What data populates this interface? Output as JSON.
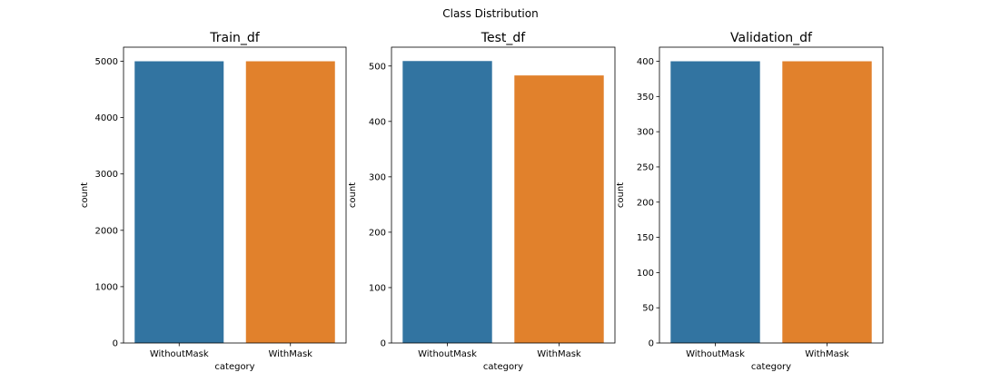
{
  "figure": {
    "title": "Class Distribution"
  },
  "colors": {
    "WithoutMask": "#3274a1",
    "WithMask": "#e1812c"
  },
  "chart_data": [
    {
      "type": "bar",
      "title": "Train_df",
      "xlabel": "category",
      "ylabel": "count",
      "categories": [
        "WithoutMask",
        "WithMask"
      ],
      "values": [
        5000,
        5000
      ],
      "ylim": [
        0,
        5250
      ],
      "yticks": [
        0,
        1000,
        2000,
        3000,
        4000,
        5000
      ],
      "ytick_labels": [
        "0",
        "1000",
        "2000",
        "3000",
        "4000",
        "5000"
      ],
      "grid": false,
      "legend": "none"
    },
    {
      "type": "bar",
      "title": "Test_df",
      "xlabel": "category",
      "ylabel": "count",
      "categories": [
        "WithoutMask",
        "WithMask"
      ],
      "values": [
        509,
        483
      ],
      "ylim": [
        0,
        534
      ],
      "yticks": [
        0,
        100,
        200,
        300,
        400,
        500
      ],
      "ytick_labels": [
        "0",
        "100",
        "200",
        "300",
        "400",
        "500"
      ],
      "grid": false,
      "legend": "none"
    },
    {
      "type": "bar",
      "title": "Validation_df",
      "xlabel": "category",
      "ylabel": "count",
      "categories": [
        "WithoutMask",
        "WithMask"
      ],
      "values": [
        400,
        400
      ],
      "ylim": [
        0,
        420
      ],
      "yticks": [
        0,
        50,
        100,
        150,
        200,
        250,
        300,
        350,
        400
      ],
      "ytick_labels": [
        "0",
        "50",
        "100",
        "150",
        "200",
        "250",
        "300",
        "350",
        "400"
      ],
      "grid": false,
      "legend": "none"
    }
  ]
}
